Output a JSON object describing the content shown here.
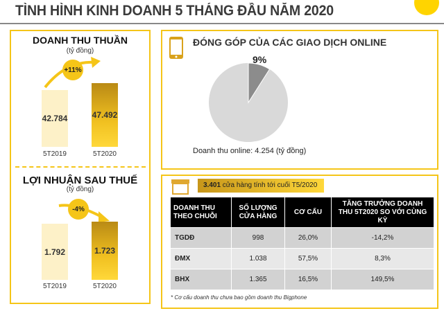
{
  "title": "TÌNH HÌNH KINH DOANH 5 THÁNG ĐẦU NĂM 2020",
  "revenue": {
    "title": "DOANH THU THUẦN",
    "unit": "(tỷ đồng)",
    "growth": "+11%",
    "bars": [
      {
        "label": "5T2019",
        "value": "42.784"
      },
      {
        "label": "5T2020",
        "value": "47.492"
      }
    ]
  },
  "profit": {
    "title": "LỢI NHUẬN SAU THUẾ",
    "unit": "(tỷ đồng)",
    "growth": "-4%",
    "bars": [
      {
        "label": "5T2019",
        "value": "1.792"
      },
      {
        "label": "5T2020",
        "value": "1.723"
      }
    ]
  },
  "online": {
    "title": "ĐÓNG GÓP CỦA CÁC GIAO DỊCH ONLINE",
    "percent": "9%",
    "share": 9,
    "caption": "Doanh thu online: 4.254 (tỷ đồng)",
    "colors": {
      "slice": "#8c8c8c",
      "rest": "#d9d9d9"
    }
  },
  "stores": {
    "count": "3.401",
    "text": " cửa hàng tính tới cuối T5/2020",
    "headers": [
      "DOANH THU THEO CHUỖI",
      "SỐ LƯỢNG CỬA HÀNG",
      "CƠ CẤU",
      "TĂNG TRƯỞNG DOANH THU 5T2020 SO VỚI CÙNG KỲ"
    ],
    "rows": [
      [
        "TGDĐ",
        "998",
        "26,0%",
        "-14,2%"
      ],
      [
        "ĐMX",
        "1.038",
        "57,5%",
        "8,3%"
      ],
      [
        "BHX",
        "1.365",
        "16,5%",
        "149,5%"
      ]
    ],
    "note": "* Cơ cấu doanh thu chưa bao gồm doanh thu Bigphone"
  },
  "accent": "#f5c518"
}
